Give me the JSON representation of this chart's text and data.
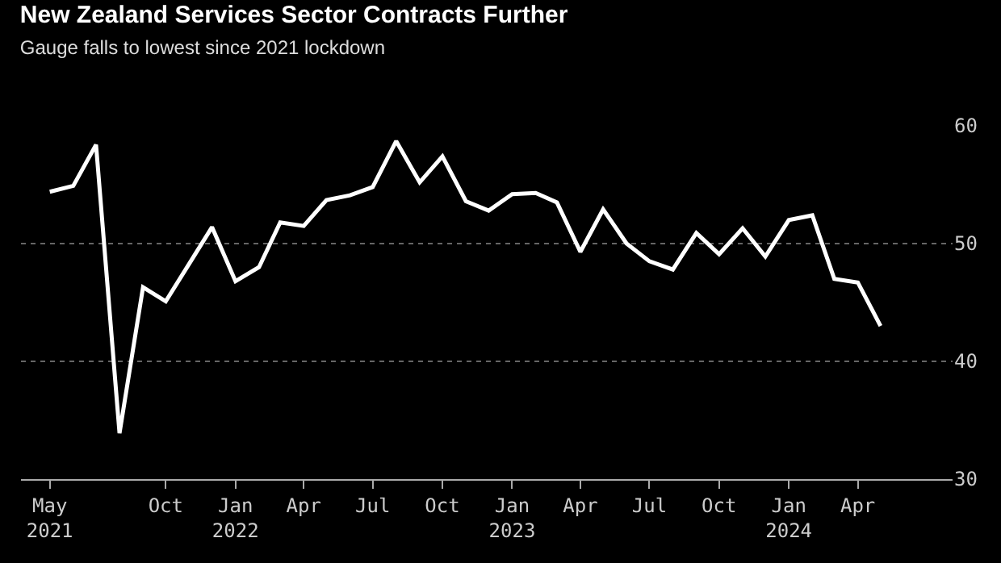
{
  "chart_data": {
    "type": "line",
    "title": "New Zealand Services Sector Contracts Further",
    "subtitle": "Gauge falls to lowest since 2021 lockdown",
    "x": [
      "2021-05",
      "2021-06",
      "2021-07",
      "2021-08",
      "2021-09",
      "2021-10",
      "2021-11",
      "2021-12",
      "2022-01",
      "2022-02",
      "2022-03",
      "2022-04",
      "2022-05",
      "2022-06",
      "2022-07",
      "2022-08",
      "2022-09",
      "2022-10",
      "2022-11",
      "2022-12",
      "2023-01",
      "2023-02",
      "2023-03",
      "2023-04",
      "2023-05",
      "2023-06",
      "2023-07",
      "2023-08",
      "2023-09",
      "2023-10",
      "2023-11",
      "2023-12",
      "2024-01",
      "2024-02",
      "2024-03",
      "2024-04",
      "2024-05"
    ],
    "series": [
      {
        "color": "#ffffff",
        "values": [
          54.4,
          54.9,
          58.4,
          33.9,
          46.3,
          45.1,
          48.3,
          51.4,
          46.8,
          48.0,
          51.8,
          51.5,
          53.7,
          54.1,
          54.8,
          58.7,
          55.2,
          57.4,
          53.6,
          52.8,
          54.2,
          54.3,
          53.5,
          49.3,
          52.9,
          50.0,
          48.5,
          47.8,
          50.9,
          49.1,
          51.3,
          48.9,
          52.0,
          52.4,
          47.0,
          46.7,
          43.0
        ]
      }
    ],
    "xlim": [
      "2021-03-24",
      "2024-08-04"
    ],
    "xticks": [
      {
        "value": "2021-05",
        "label": "May\n2021"
      },
      {
        "value": "2021-10",
        "label": "Oct"
      },
      {
        "value": "2022-01",
        "label": "Jan\n2022"
      },
      {
        "value": "2022-04",
        "label": "Apr"
      },
      {
        "value": "2022-07",
        "label": "Jul"
      },
      {
        "value": "2022-10",
        "label": "Oct"
      },
      {
        "value": "2023-01",
        "label": "Jan\n2023"
      },
      {
        "value": "2023-04",
        "label": "Apr"
      },
      {
        "value": "2023-07",
        "label": "Jul"
      },
      {
        "value": "2023-10",
        "label": "Oct"
      },
      {
        "value": "2024-01",
        "label": "Jan\n2024"
      },
      {
        "value": "2024-04",
        "label": "Apr"
      }
    ],
    "ylim": [
      30,
      60
    ],
    "yticks": [
      30,
      40,
      50,
      60
    ],
    "grid": "y",
    "marker": "none",
    "line_style": "solid"
  }
}
